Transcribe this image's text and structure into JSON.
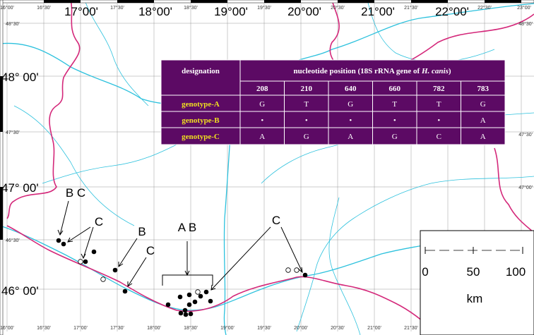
{
  "top_major": [
    "17°00'",
    "18°00'",
    "19°00'",
    "20°00'",
    "21°00'",
    "22°00'"
  ],
  "top_minor": [
    "16°00'",
    "16°30'",
    "17°30'",
    "18°30'",
    "19°30'",
    "20°30'",
    "21°30'",
    "22°30'",
    "23°00'"
  ],
  "left_major": [
    "48° 00'",
    "47° 00'",
    "46° 00'"
  ],
  "left_minor": [
    "48°30'",
    "47°30'",
    "46°30'"
  ],
  "right_labels": [
    "48°30'",
    "47°30'",
    "47°00'"
  ],
  "bottom_labels": [
    "16°00'",
    "16°30'",
    "17°00'",
    "17°30'",
    "18°00'",
    "18°30'",
    "19°00'",
    "19°30'",
    "20°00'",
    "20°30'",
    "21°00'",
    "21°30'"
  ],
  "table": {
    "designation": "designation",
    "position_header": [
      "nucleotide position (18S rRNA gene of ",
      "H. canis",
      ")"
    ],
    "positions": [
      208,
      210,
      640,
      660,
      782,
      783
    ],
    "rows": [
      {
        "name": "genotype-A",
        "bases": [
          "G",
          "T",
          "G",
          "T",
          "T",
          "G"
        ]
      },
      {
        "name": "genotype-B",
        "bases": [
          "•",
          "•",
          "•",
          "•",
          "•",
          "A"
        ]
      },
      {
        "name": "genotype-C",
        "bases": [
          "A",
          "G",
          "A",
          "G",
          "C",
          "A"
        ]
      }
    ]
  },
  "annotations": [
    "B C",
    "C",
    "B",
    "C",
    "A B",
    "C"
  ],
  "scale": {
    "ticks": [
      0,
      50,
      100
    ],
    "unit": "km"
  }
}
